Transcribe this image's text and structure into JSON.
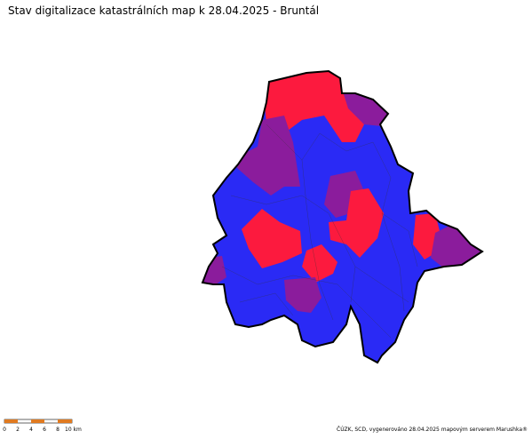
{
  "title": "Stav digitalizace katastrálních map k 28.04.2025 - Bruntál",
  "scale_bar": {
    "labels": [
      "0",
      "2",
      "4",
      "6",
      "8",
      "10 km"
    ]
  },
  "credit": "ČÚZK, SCD, vygenerováno 28.04.2025 mapovým serverem Marushka®"
}
